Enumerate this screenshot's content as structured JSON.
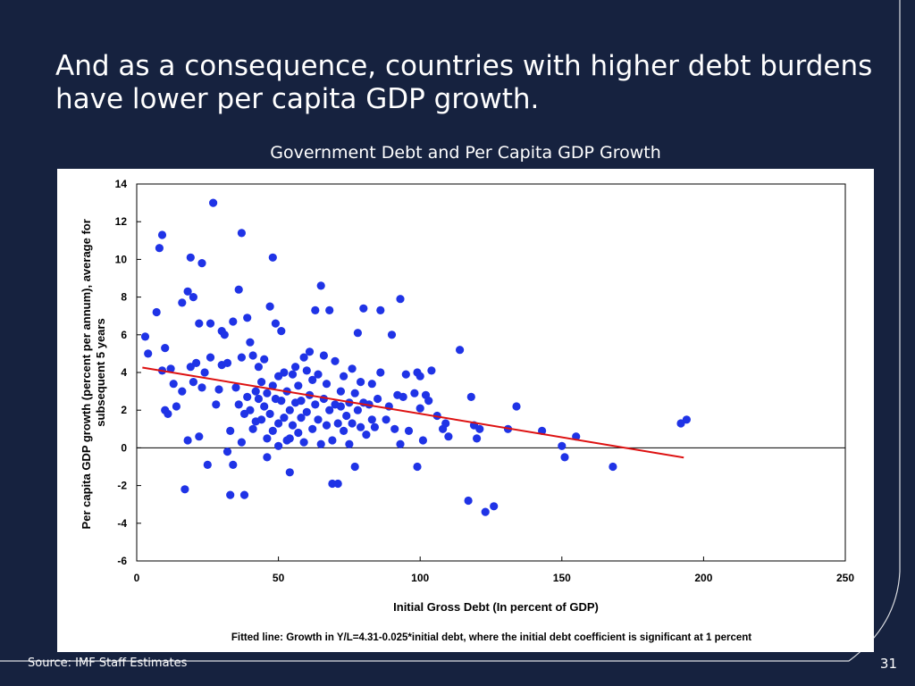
{
  "slide": {
    "title": "And as a consequence, countries with higher debt burdens have lower per capita GDP growth.",
    "source": "Source: IMF Staff Estimates",
    "page_number": "31",
    "background_color": "#16223f"
  },
  "chart_data": {
    "type": "scatter",
    "title": "Government Debt and Per Capita GDP Growth",
    "xlabel": "Initial Gross Debt (In percent of GDP)",
    "ylabel_lines": [
      "Per capita GDP growth (percent per annum), average for",
      "subsequent 5 years"
    ],
    "footnote": "Fitted line: Growth in Y/L=4.31-0.025*initial debt, where the initial debt coefficient is significant at 1 percent",
    "xlim": [
      0,
      250
    ],
    "ylim": [
      -6,
      14
    ],
    "xticks": [
      0,
      50,
      100,
      150,
      200,
      250
    ],
    "yticks": [
      -6,
      -4,
      -2,
      0,
      2,
      4,
      6,
      8,
      10,
      12,
      14
    ],
    "grid": false,
    "point_color": "#1f33e6",
    "fit_color": "#dd1111",
    "fitted_line": {
      "intercept": 4.31,
      "slope": -0.025,
      "x_range": [
        2,
        193
      ]
    },
    "points": [
      [
        3,
        5.9
      ],
      [
        4,
        5
      ],
      [
        7,
        7.2
      ],
      [
        8,
        10.6
      ],
      [
        9,
        11.3
      ],
      [
        9,
        4.1
      ],
      [
        10,
        2
      ],
      [
        10,
        5.3
      ],
      [
        11,
        1.8
      ],
      [
        12,
        4.2
      ],
      [
        13,
        3.4
      ],
      [
        14,
        2.2
      ],
      [
        16,
        3
      ],
      [
        16,
        7.7
      ],
      [
        17,
        -2.2
      ],
      [
        18,
        0.4
      ],
      [
        18,
        8.3
      ],
      [
        19,
        4.3
      ],
      [
        19,
        10.1
      ],
      [
        20,
        3.5
      ],
      [
        20,
        8
      ],
      [
        21,
        4.5
      ],
      [
        22,
        0.6
      ],
      [
        22,
        6.6
      ],
      [
        23,
        3.2
      ],
      [
        23,
        9.8
      ],
      [
        24,
        4
      ],
      [
        25,
        -0.9
      ],
      [
        26,
        6.6
      ],
      [
        26,
        4.8
      ],
      [
        27,
        13
      ],
      [
        28,
        2.3
      ],
      [
        29,
        3.1
      ],
      [
        30,
        4.4
      ],
      [
        30,
        6.2
      ],
      [
        31,
        6
      ],
      [
        32,
        4.5
      ],
      [
        32,
        -0.2
      ],
      [
        33,
        0.9
      ],
      [
        33,
        -2.5
      ],
      [
        34,
        6.7
      ],
      [
        34,
        -0.9
      ],
      [
        35,
        3.2
      ],
      [
        36,
        8.4
      ],
      [
        36,
        2.3
      ],
      [
        37,
        0.3
      ],
      [
        37,
        4.8
      ],
      [
        37,
        11.4
      ],
      [
        38,
        -2.5
      ],
      [
        38,
        1.8
      ],
      [
        39,
        2.7
      ],
      [
        39,
        6.9
      ],
      [
        40,
        2
      ],
      [
        40,
        5.6
      ],
      [
        41,
        4.9
      ],
      [
        41,
        1
      ],
      [
        42,
        3
      ],
      [
        42,
        1.4
      ],
      [
        43,
        2.6
      ],
      [
        43,
        4.3
      ],
      [
        44,
        3.5
      ],
      [
        44,
        1.5
      ],
      [
        45,
        2.2
      ],
      [
        45,
        4.7
      ],
      [
        46,
        -0.5
      ],
      [
        46,
        0.5
      ],
      [
        46,
        2.9
      ],
      [
        47,
        1.8
      ],
      [
        47,
        7.5
      ],
      [
        48,
        3.3
      ],
      [
        48,
        0.9
      ],
      [
        48,
        10.1
      ],
      [
        49,
        2.6
      ],
      [
        49,
        6.6
      ],
      [
        50,
        0.1
      ],
      [
        50,
        1.3
      ],
      [
        50,
        3.8
      ],
      [
        51,
        2.5
      ],
      [
        51,
        6.2
      ],
      [
        52,
        4
      ],
      [
        52,
        1.6
      ],
      [
        53,
        0.4
      ],
      [
        53,
        3
      ],
      [
        54,
        -1.3
      ],
      [
        54,
        2
      ],
      [
        54,
        0.5
      ],
      [
        55,
        3.9
      ],
      [
        55,
        1.2
      ],
      [
        56,
        2.4
      ],
      [
        56,
        4.3
      ],
      [
        57,
        0.8
      ],
      [
        57,
        3.3
      ],
      [
        58,
        1.6
      ],
      [
        58,
        2.5
      ],
      [
        59,
        4.8
      ],
      [
        59,
        0.3
      ],
      [
        60,
        1.9
      ],
      [
        60,
        4.1
      ],
      [
        61,
        2.8
      ],
      [
        61,
        5.1
      ],
      [
        62,
        1
      ],
      [
        62,
        3.6
      ],
      [
        63,
        7.3
      ],
      [
        63,
        2.3
      ],
      [
        64,
        1.5
      ],
      [
        64,
        3.9
      ],
      [
        65,
        0.2
      ],
      [
        65,
        8.6
      ],
      [
        66,
        2.6
      ],
      [
        66,
        4.9
      ],
      [
        67,
        1.2
      ],
      [
        67,
        3.4
      ],
      [
        68,
        7.3
      ],
      [
        68,
        2
      ],
      [
        69,
        0.4
      ],
      [
        69,
        -1.9
      ],
      [
        70,
        2.3
      ],
      [
        70,
        4.6
      ],
      [
        71,
        1.3
      ],
      [
        71,
        -1.9
      ],
      [
        72,
        3
      ],
      [
        72,
        2.2
      ],
      [
        73,
        0.9
      ],
      [
        73,
        3.8
      ],
      [
        74,
        1.7
      ],
      [
        75,
        2.4
      ],
      [
        75,
        0.2
      ],
      [
        76,
        4.2
      ],
      [
        76,
        1.3
      ],
      [
        77,
        -1
      ],
      [
        77,
        2.9
      ],
      [
        78,
        2
      ],
      [
        78,
        6.1
      ],
      [
        79,
        1.1
      ],
      [
        79,
        3.5
      ],
      [
        80,
        7.4
      ],
      [
        80,
        2.4
      ],
      [
        81,
        0.7
      ],
      [
        82,
        2.3
      ],
      [
        83,
        3.4
      ],
      [
        83,
        1.5
      ],
      [
        84,
        1.1
      ],
      [
        85,
        2.6
      ],
      [
        86,
        4
      ],
      [
        86,
        7.3
      ],
      [
        88,
        1.5
      ],
      [
        89,
        2.2
      ],
      [
        90,
        6
      ],
      [
        91,
        1
      ],
      [
        92,
        2.8
      ],
      [
        93,
        0.2
      ],
      [
        93,
        7.9
      ],
      [
        94,
        2.7
      ],
      [
        95,
        3.9
      ],
      [
        96,
        0.9
      ],
      [
        98,
        2.9
      ],
      [
        99,
        4
      ],
      [
        99,
        -1
      ],
      [
        100,
        3.8
      ],
      [
        100,
        2.1
      ],
      [
        101,
        0.4
      ],
      [
        102,
        2.8
      ],
      [
        103,
        2.5
      ],
      [
        104,
        4.1
      ],
      [
        106,
        1.7
      ],
      [
        108,
        1
      ],
      [
        109,
        1.3
      ],
      [
        110,
        0.6
      ],
      [
        114,
        5.2
      ],
      [
        117,
        -2.8
      ],
      [
        118,
        2.7
      ],
      [
        119,
        1.2
      ],
      [
        120,
        0.5
      ],
      [
        121,
        1
      ],
      [
        123,
        -3.4
      ],
      [
        126,
        -3.1
      ],
      [
        131,
        1
      ],
      [
        134,
        2.2
      ],
      [
        143,
        0.9
      ],
      [
        150,
        0.1
      ],
      [
        151,
        -0.5
      ],
      [
        155,
        0.6
      ],
      [
        168,
        -1
      ],
      [
        192,
        1.3
      ],
      [
        194,
        1.5
      ]
    ]
  }
}
